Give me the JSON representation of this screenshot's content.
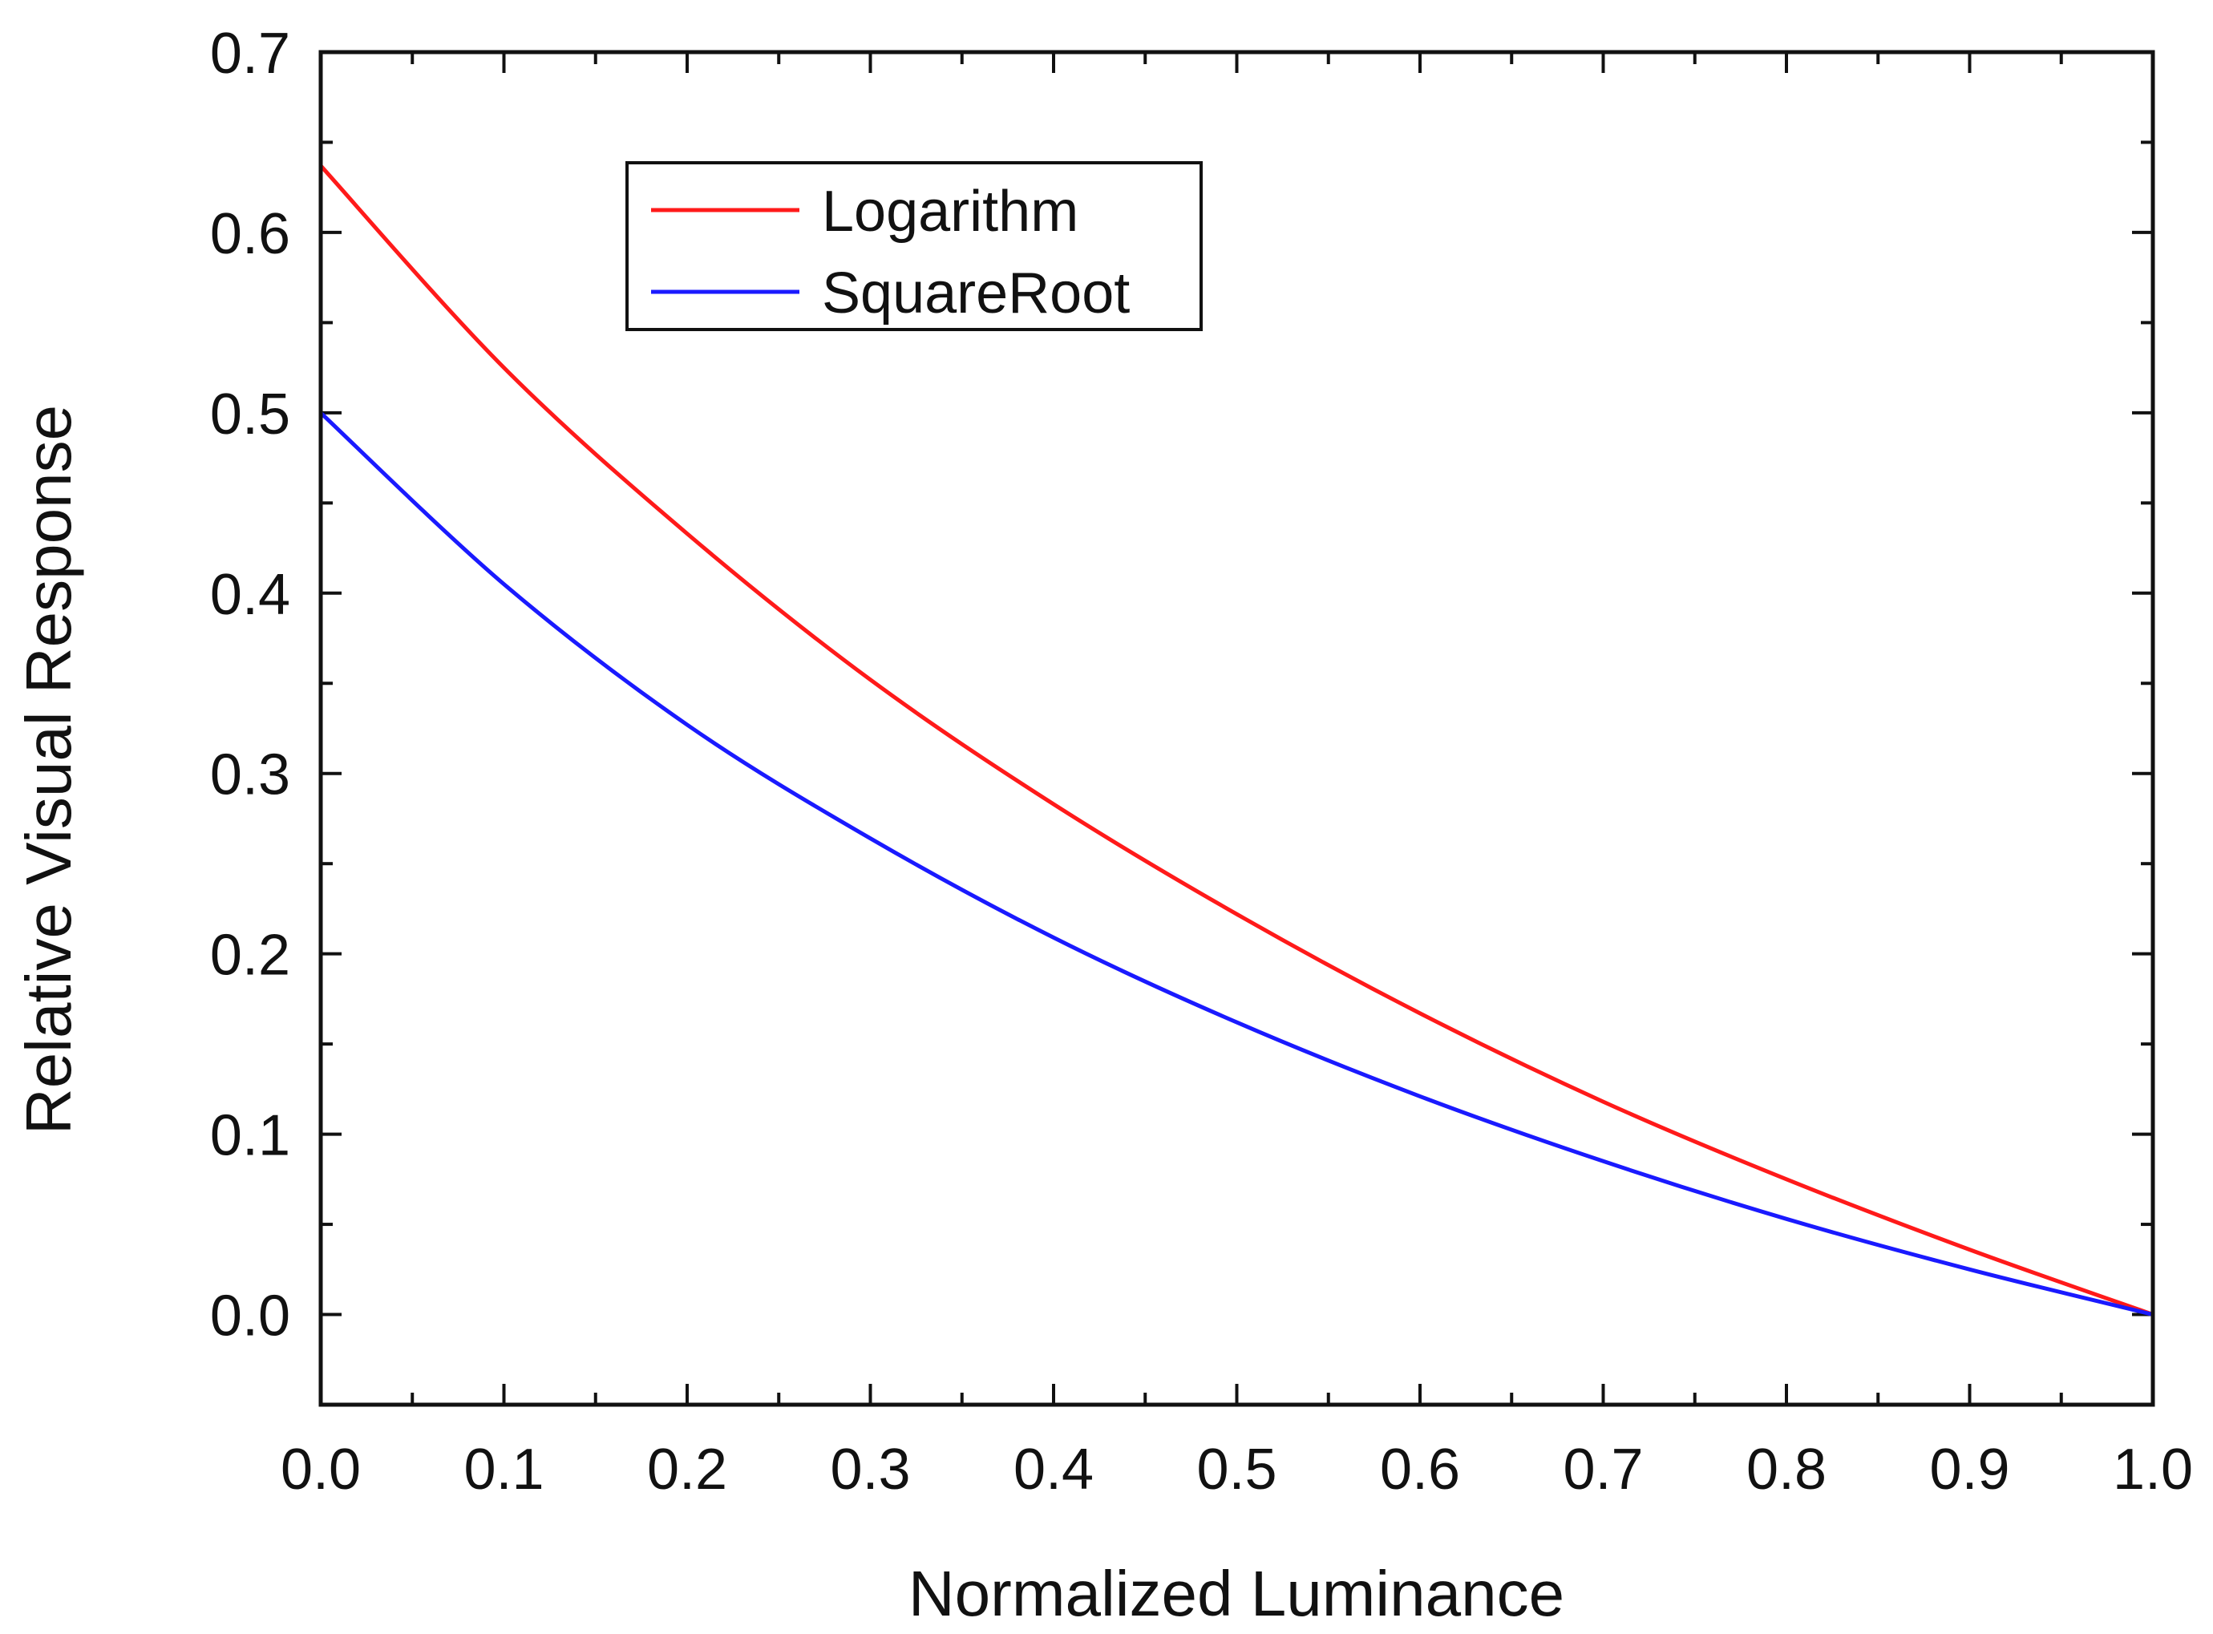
{
  "chart_data": {
    "type": "line",
    "title": "",
    "xlabel": "Normalized Luminance",
    "ylabel": "Relative Visual Response",
    "xlim": [
      0.0,
      1.0
    ],
    "ylim": [
      -0.05,
      0.7
    ],
    "x_ticks": [
      "0.0",
      "0.1",
      "0.2",
      "0.3",
      "0.4",
      "0.5",
      "0.6",
      "0.7",
      "0.8",
      "0.9",
      "1.0"
    ],
    "y_ticks": [
      "0.0",
      "0.1",
      "0.2",
      "0.3",
      "0.4",
      "0.5",
      "0.6",
      "0.7"
    ],
    "grid": false,
    "legend_position": "top-left",
    "x": [
      0.0,
      0.1,
      0.2,
      0.3,
      0.4,
      0.5,
      0.6,
      0.7,
      0.8,
      0.9,
      1.0
    ],
    "series": [
      {
        "name": "Logarithm",
        "color": "#ff1a1a",
        "values": [
          0.637,
          0.525,
          0.433,
          0.352,
          0.283,
          0.222,
          0.167,
          0.118,
          0.075,
          0.036,
          0.0
        ]
      },
      {
        "name": "SquareRoot",
        "color": "#1a1aff",
        "values": [
          0.5,
          0.405,
          0.327,
          0.264,
          0.209,
          0.162,
          0.121,
          0.085,
          0.053,
          0.025,
          0.0
        ]
      }
    ]
  }
}
